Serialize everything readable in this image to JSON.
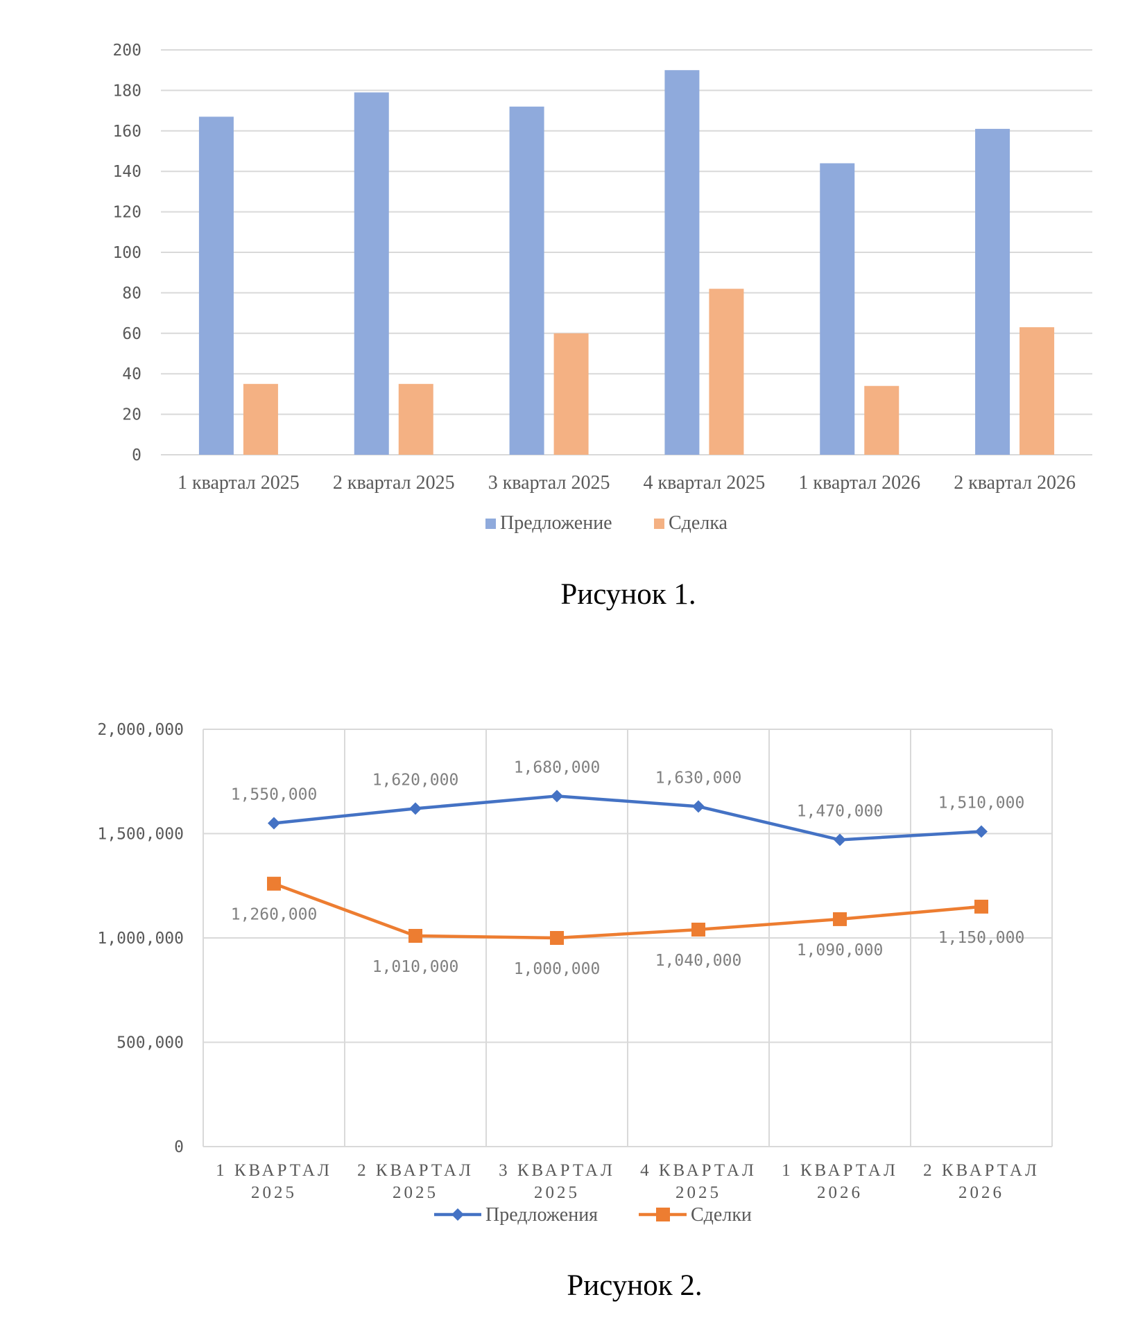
{
  "figure1": {
    "caption": "Рисунок 1.",
    "chart_data": {
      "type": "bar",
      "categories": [
        "1 квартал  2025",
        "2 квартал 2025",
        "3 квартал 2025",
        "4 квартал 2025",
        "1 квартал 2026",
        "2 квартал 2026"
      ],
      "series": [
        {
          "name": "Предложение",
          "values": [
            167,
            179,
            172,
            190,
            144,
            161
          ]
        },
        {
          "name": "Сделка",
          "values": [
            35,
            35,
            60,
            82,
            34,
            63
          ]
        }
      ],
      "ylim": [
        0,
        200
      ],
      "yticks": [
        0,
        20,
        40,
        60,
        80,
        100,
        120,
        140,
        160,
        180,
        200
      ],
      "grid": "horizontal",
      "legend": "bottom"
    },
    "colors": {
      "series1": "#8faadc",
      "series2": "#f4b183",
      "grid": "#d9d9d9"
    }
  },
  "figure2": {
    "caption": "Рисунок 2.",
    "chart_data": {
      "type": "line",
      "categories": [
        [
          "1 КВАРТАЛ",
          "2025"
        ],
        [
          "2 КВАРТАЛ",
          "2025"
        ],
        [
          "3 КВАРТАЛ",
          "2025"
        ],
        [
          "4 КВАРТАЛ",
          "2025"
        ],
        [
          "1 КВАРТАЛ",
          "2026"
        ],
        [
          "2 КВАРТАЛ",
          "2026"
        ]
      ],
      "series": [
        {
          "name": "Предложения",
          "values": [
            1550000,
            1620000,
            1680000,
            1630000,
            1470000,
            1510000
          ],
          "labels": [
            "1,550,000",
            "1,620,000",
            "1,680,000",
            "1,630,000",
            "1,470,000",
            "1,510,000"
          ],
          "label_position": "above",
          "marker": "diamond"
        },
        {
          "name": "Сделки",
          "values": [
            1260000,
            1010000,
            1000000,
            1040000,
            1090000,
            1150000
          ],
          "labels": [
            "1,260,000",
            "1,010,000",
            "1,000,000",
            "1,040,000",
            "1,090,000",
            "1,150,000"
          ],
          "label_position": "below",
          "marker": "square"
        }
      ],
      "ylim": [
        0,
        2000000
      ],
      "yticks": [
        0,
        500000,
        1000000,
        1500000,
        2000000
      ],
      "ytick_labels": [
        "0",
        "500,000",
        "1,000,000",
        "1,500,000",
        "2,000,000"
      ],
      "grid": "both",
      "legend": "bottom"
    },
    "colors": {
      "series1": "#4472c4",
      "series2": "#ed7d31",
      "grid": "#d9d9d9"
    }
  }
}
